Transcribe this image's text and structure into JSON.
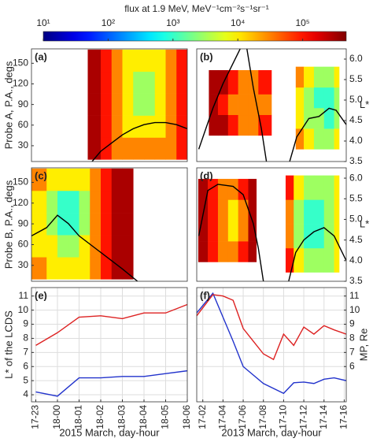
{
  "colorbar": {
    "title": "flux at 1.9 MeV, MeV⁻¹cm⁻²s⁻¹sr⁻¹",
    "log": true,
    "clim": [
      10,
      470000
    ],
    "ticks": [
      {
        "value": 10,
        "label": "10¹"
      },
      {
        "value": 100,
        "label": "10²"
      },
      {
        "value": 1000,
        "label": "10³"
      },
      {
        "value": 10000,
        "label": "10⁴"
      },
      {
        "value": 100000,
        "label": "10⁵"
      }
    ]
  },
  "chart_data": [
    {
      "type": "heatmap",
      "label": "(a)",
      "ylabel": "Probe A, P.A., degs",
      "xlim": [
        22.8,
        30
      ],
      "ylim": [
        7,
        171
      ],
      "yticks": [
        30,
        60,
        90,
        120,
        150
      ],
      "y2lim": [
        3.5,
        6.25
      ],
      "blocks": [
        {
          "x_edges": [
            25.4,
            26,
            26.5,
            27,
            27.5,
            28,
            28.5,
            29,
            29.5,
            30
          ],
          "y_edges": [
            10,
            42,
            74,
            106,
            138,
            170
          ],
          "values": [
            [
              300000,
              100000,
              30000,
              30000,
              30000,
              30000,
              30000,
              30000,
              100000
            ],
            [
              300000,
              100000,
              30000,
              10000,
              10000,
              10000,
              10000,
              30000,
              100000
            ],
            [
              300000,
              100000,
              30000,
              10000,
              3000,
              3000,
              10000,
              30000,
              100000
            ],
            [
              300000,
              100000,
              30000,
              10000,
              3000,
              3000,
              10000,
              30000,
              100000
            ],
            [
              300000,
              100000,
              30000,
              10000,
              10000,
              10000,
              10000,
              30000,
              100000
            ]
          ]
        }
      ],
      "lines": [
        {
          "color": "#000000",
          "axis": "y2",
          "x": [
            25.6,
            26,
            26.5,
            27,
            27.5,
            28,
            28.5,
            29,
            29.5,
            30
          ],
          "values": [
            3.5,
            3.75,
            3.95,
            4.15,
            4.3,
            4.4,
            4.45,
            4.45,
            4.4,
            4.3
          ]
        }
      ]
    },
    {
      "type": "heatmap",
      "label": "(b)",
      "y2label": "L*",
      "xlim": [
        1.4,
        16.2
      ],
      "ylim": [
        7,
        171
      ],
      "y2lim": [
        3.5,
        6.25
      ],
      "y2ticks": [
        3.5,
        {
          "value": 4,
          "label": "4.0"
        },
        4.5,
        {
          "value": 5,
          "label": "5.0"
        },
        5.5,
        {
          "value": 6,
          "label": "6.0"
        }
      ],
      "blocks": [
        {
          "x_edges": [
            2.6,
            3.5,
            4.5,
            5.5,
            6.5,
            7.5,
            8.8
          ],
          "y_edges": [
            45,
            75,
            105,
            140
          ],
          "values": [
            [
              300000,
              300000,
              100000,
              30000,
              30000,
              100000
            ],
            [
              300000,
              100000,
              30000,
              30000,
              30000,
              30000
            ],
            [
              300000,
              300000,
              100000,
              30000,
              30000,
              100000
            ]
          ]
        },
        {
          "x_edges": [
            11.2,
            12,
            13,
            14,
            15,
            15.5
          ],
          "y_edges": [
            25,
            55,
            85,
            115,
            145
          ],
          "values": [
            [
              30000,
              10000,
              3000,
              3000,
              10000
            ],
            [
              10000,
              3000,
              3000,
              1000,
              3000
            ],
            [
              10000,
              3000,
              1000,
              1000,
              3000
            ],
            [
              30000,
              10000,
              3000,
              3000,
              10000
            ]
          ]
        }
      ],
      "lines": [
        {
          "color": "#000000",
          "axis": "y2",
          "x": [
            1.6,
            3,
            4,
            5,
            5.8,
            6.3,
            7,
            7.8,
            8.3,
            9.5,
            10.6,
            11.3,
            12.5,
            13.5,
            14.5,
            15.2,
            16.2
          ],
          "values": [
            3.8,
            4.8,
            5.4,
            5.9,
            6.3,
            6.35,
            5.3,
            4.3,
            3.5,
            null,
            3.5,
            4.1,
            4.55,
            4.6,
            4.8,
            4.75,
            4.4
          ]
        }
      ]
    },
    {
      "type": "heatmap",
      "label": "(c)",
      "ylabel": "Probe B, P.A., degs",
      "xlim": [
        22.8,
        30
      ],
      "ylim": [
        7,
        171
      ],
      "yticks": [
        30,
        60,
        90,
        120,
        150
      ],
      "y2lim": [
        3.5,
        6.25
      ],
      "blocks": [
        {
          "x_edges": [
            22.8,
            23.5,
            24,
            24.5,
            25,
            25.5,
            26,
            26.5,
            27,
            27.5
          ],
          "y_edges": [
            10,
            42,
            74,
            106,
            138,
            170
          ],
          "values": [
            [
              30000,
              10000,
              10000,
              10000,
              10000,
              30000,
              100000,
              300000,
              300000
            ],
            [
              10000,
              10000,
              3000,
              3000,
              10000,
              30000,
              100000,
              300000,
              300000
            ],
            [
              10000,
              3000,
              1000,
              1000,
              3000,
              30000,
              100000,
              300000,
              300000
            ],
            [
              10000,
              3000,
              1000,
              1000,
              3000,
              30000,
              100000,
              300000,
              300000
            ],
            [
              30000,
              10000,
              10000,
              10000,
              10000,
              30000,
              100000,
              300000,
              300000
            ]
          ]
        }
      ],
      "lines": [
        {
          "color": "#000000",
          "axis": "y2",
          "x": [
            22.8,
            23.5,
            24,
            24.5,
            25,
            25.5,
            26,
            26.5,
            27,
            27.7
          ],
          "values": [
            4.6,
            4.8,
            5.1,
            4.9,
            4.6,
            4.4,
            4.2,
            4.0,
            3.8,
            3.5
          ]
        }
      ]
    },
    {
      "type": "heatmap",
      "label": "(d)",
      "y2label": "L*",
      "xlim": [
        1.4,
        16.2
      ],
      "ylim": [
        7,
        171
      ],
      "y2lim": [
        3.5,
        6.25
      ],
      "y2ticks": [
        3.5,
        {
          "value": 4,
          "label": "4.0"
        },
        4.5,
        {
          "value": 5,
          "label": "5.0"
        },
        5.5,
        {
          "value": 6,
          "label": "6.0"
        }
      ],
      "blocks": [
        {
          "x_edges": [
            1.55,
            2.5,
            3.5,
            4.5,
            5.5,
            6.5,
            7.3
          ],
          "y_edges": [
            35,
            65,
            95,
            125,
            155
          ],
          "values": [
            [
              300000,
              100000,
              30000,
              30000,
              100000,
              300000
            ],
            [
              300000,
              100000,
              30000,
              10000,
              30000,
              300000
            ],
            [
              300000,
              100000,
              30000,
              10000,
              30000,
              300000
            ],
            [
              300000,
              100000,
              30000,
              30000,
              100000,
              300000
            ]
          ]
        },
        {
          "x_edges": [
            10.2,
            11,
            12,
            13,
            14,
            15,
            15.5
          ],
          "y_edges": [
            20,
            55,
            90,
            125,
            160
          ],
          "values": [
            [
              100000,
              10000,
              3000,
              3000,
              3000,
              10000
            ],
            [
              30000,
              3000,
              1000,
              1000,
              3000,
              10000
            ],
            [
              30000,
              3000,
              1000,
              1000,
              3000,
              10000
            ],
            [
              100000,
              10000,
              3000,
              3000,
              3000,
              10000
            ]
          ]
        }
      ],
      "lines": [
        {
          "color": "#000000",
          "axis": "y2",
          "x": [
            1.6,
            2.5,
            3.5,
            5,
            6,
            7,
            7.5,
            8,
            9,
            10.5,
            11.2,
            12,
            13,
            14,
            15,
            16.2
          ],
          "values": [
            4.6,
            5.7,
            5.85,
            5.8,
            5.6,
            4.9,
            4.3,
            3.5,
            null,
            3.5,
            4.2,
            4.5,
            4.7,
            4.8,
            4.6,
            4.0
          ]
        }
      ]
    },
    {
      "type": "line",
      "label": "(e)",
      "ylabel": "L* of the LCDS",
      "ylabel_color": "#2233cc",
      "xlabel": "2015 March, day-hour",
      "grid": true,
      "xlim": [
        22.8,
        30
      ],
      "xticks": [
        {
          "value": 23,
          "label": "17-23"
        },
        {
          "value": 24,
          "label": "18-00"
        },
        {
          "value": 25,
          "label": "18-01"
        },
        {
          "value": 26,
          "label": "18-02"
        },
        {
          "value": 27,
          "label": "18-03"
        },
        {
          "value": 28,
          "label": "18-04"
        },
        {
          "value": 29,
          "label": "18-05"
        },
        {
          "value": 30,
          "label": "18-06"
        }
      ],
      "ylim": [
        3.5,
        11.6
      ],
      "yticks": [
        4,
        5,
        6,
        7,
        8,
        9,
        10,
        11
      ],
      "series": [
        {
          "color": "#2233cc",
          "x": [
            23,
            24,
            25,
            26,
            27,
            28,
            29,
            30
          ],
          "values": [
            4.2,
            3.9,
            5.2,
            5.2,
            5.3,
            5.3,
            5.5,
            5.7
          ]
        },
        {
          "color": "#dd2222",
          "x": [
            23,
            24,
            25,
            26,
            27,
            28,
            29,
            30
          ],
          "values": [
            7.5,
            8.4,
            9.5,
            9.6,
            9.4,
            9.8,
            9.8,
            10.4
          ]
        }
      ]
    },
    {
      "type": "line",
      "label": "(f)",
      "y2label": "MP, Re",
      "y2label_color": "#dd2222",
      "xlabel": "2013 March, day-hour",
      "grid": true,
      "xlim": [
        1.4,
        16.2
      ],
      "xticks": [
        {
          "value": 2,
          "label": "17-02"
        },
        {
          "value": 4,
          "label": "17-04"
        },
        {
          "value": 6,
          "label": "17-06"
        },
        {
          "value": 8,
          "label": "17-08"
        },
        {
          "value": 10,
          "label": "17-10"
        },
        {
          "value": 12,
          "label": "17-12"
        },
        {
          "value": 14,
          "label": "17-14"
        },
        {
          "value": 16,
          "label": "17-16"
        }
      ],
      "y2lim": [
        3.5,
        11.6
      ],
      "y2ticks": [
        6,
        7,
        8,
        9,
        10,
        11
      ],
      "series": [
        {
          "color": "#2233cc",
          "axis": "y2",
          "x": [
            1.4,
            3,
            4,
            5,
            6,
            8,
            10,
            11,
            12,
            13,
            14,
            15,
            16.2
          ],
          "values": [
            9.8,
            11.2,
            9.5,
            7.8,
            6.0,
            4.8,
            4.1,
            4.85,
            4.9,
            4.8,
            5.1,
            5.2,
            5.0
          ]
        },
        {
          "color": "#dd2222",
          "axis": "y2",
          "x": [
            1.4,
            3,
            4,
            5,
            6,
            7,
            8,
            9,
            10,
            11,
            12,
            13,
            14,
            15,
            16.2
          ],
          "values": [
            9.6,
            11.1,
            11.0,
            10.7,
            8.7,
            7.8,
            6.9,
            6.5,
            8.3,
            7.5,
            8.8,
            8.3,
            8.9,
            8.6,
            8.3
          ]
        }
      ]
    }
  ]
}
